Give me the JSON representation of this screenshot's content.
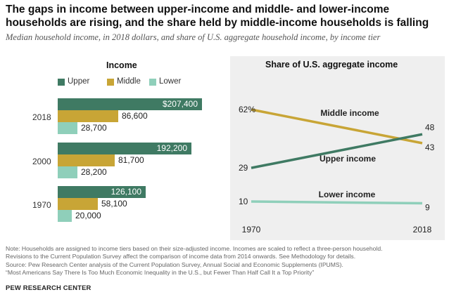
{
  "title": "The gaps in income between upper-income and middle- and lower-income households are rising, and the share held by middle-income households is falling",
  "subtitle": "Median household income, in 2018 dollars, and share of U.S. aggregate household income, by income tier",
  "colors": {
    "upper": "#3f7a63",
    "middle": "#c8a536",
    "lower": "#8fcfba"
  },
  "chart_data": [
    {
      "type": "bar",
      "title": "Income",
      "orientation": "horizontal",
      "categories": [
        "2018",
        "2000",
        "1970"
      ],
      "legend": [
        "Upper",
        "Middle",
        "Lower"
      ],
      "series": [
        {
          "name": "Upper",
          "values": [
            207400,
            192200,
            126100
          ],
          "labels": [
            "$207,400",
            "192,200",
            "126,100"
          ]
        },
        {
          "name": "Middle",
          "values": [
            86600,
            81700,
            58100
          ],
          "labels": [
            "86,600",
            "81,700",
            "58,100"
          ]
        },
        {
          "name": "Lower",
          "values": [
            28700,
            28200,
            20000
          ],
          "labels": [
            "28,700",
            "28,200",
            "20,000"
          ]
        }
      ],
      "xlim": [
        0,
        207400
      ],
      "grid": false
    },
    {
      "type": "line",
      "title": "Share of U.S. aggregate income",
      "x": [
        "1970",
        "2018"
      ],
      "series": [
        {
          "name": "Middle income",
          "values": [
            62,
            43
          ],
          "start_label": "62%",
          "end_label": "43"
        },
        {
          "name": "Upper income",
          "values": [
            29,
            48
          ],
          "start_label": "29",
          "end_label": "48"
        },
        {
          "name": "Lower income",
          "values": [
            10,
            9
          ],
          "start_label": "10",
          "end_label": "9"
        }
      ],
      "ylim": [
        0,
        70
      ],
      "grid": false
    }
  ],
  "note_lines": [
    "Note: Households are assigned to income tiers based on their size-adjusted income. Incomes are scaled to reflect a three-person household.",
    "Revisions to the Current Population Survey affect the comparison of income data from 2014 onwards. See Methodology for details.",
    "Source: Pew Research Center analysis of the Current Population Survey, Annual Social and Economic Supplements (IPUMS).",
    "“Most Americans Say There Is Too Much Economic Inequality in the U.S., but Fewer Than Half Call It a Top Priority”"
  ],
  "source_label": "PEW RESEARCH CENTER"
}
